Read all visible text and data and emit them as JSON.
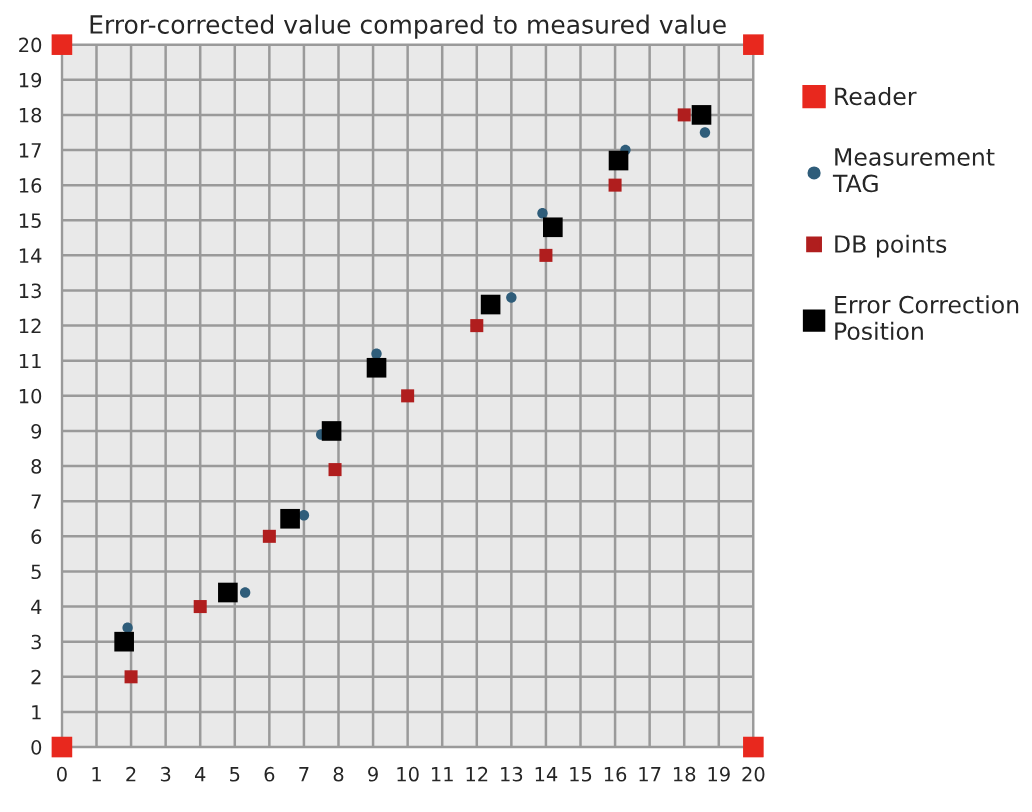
{
  "chart_data": {
    "type": "scatter",
    "title": "Error-corrected value compared to measured value",
    "xlim": [
      0,
      20
    ],
    "ylim": [
      0,
      20
    ],
    "xticks": [
      0,
      1,
      2,
      3,
      4,
      5,
      6,
      7,
      8,
      9,
      10,
      11,
      12,
      13,
      14,
      15,
      16,
      17,
      18,
      19,
      20
    ],
    "yticks": [
      0,
      1,
      2,
      3,
      4,
      5,
      6,
      7,
      8,
      9,
      10,
      11,
      12,
      13,
      14,
      15,
      16,
      17,
      18,
      19,
      20
    ],
    "grid": true,
    "legend": "right",
    "series": [
      {
        "name": "Reader",
        "color": "#e8281e",
        "marker": "square",
        "x": [
          0,
          20,
          0,
          20
        ],
        "values": [
          0,
          0,
          20,
          20
        ]
      },
      {
        "name": "Measurement\nTAG",
        "color": "#2f5d7a",
        "marker": "circle",
        "x": [
          1.9,
          5.3,
          7.0,
          7.5,
          9.1,
          13.0,
          13.9,
          16.3,
          18.6
        ],
        "values": [
          3.4,
          4.4,
          6.6,
          8.9,
          11.2,
          12.8,
          15.2,
          17.0,
          17.5
        ]
      },
      {
        "name": "DB points",
        "color": "#b01e1e",
        "marker": "square",
        "x": [
          2,
          4,
          6,
          7.9,
          10,
          12,
          14,
          16,
          18
        ],
        "values": [
          2,
          4,
          6,
          7.9,
          10,
          12,
          14,
          16,
          18
        ]
      },
      {
        "name": "Error Correction\nPosition",
        "color": "#000000",
        "marker": "square",
        "x": [
          1.8,
          4.8,
          6.6,
          7.8,
          9.1,
          12.4,
          14.2,
          16.1,
          18.5
        ],
        "values": [
          3.0,
          4.4,
          6.5,
          9.0,
          10.8,
          12.6,
          14.8,
          16.7,
          18.0
        ]
      }
    ]
  }
}
